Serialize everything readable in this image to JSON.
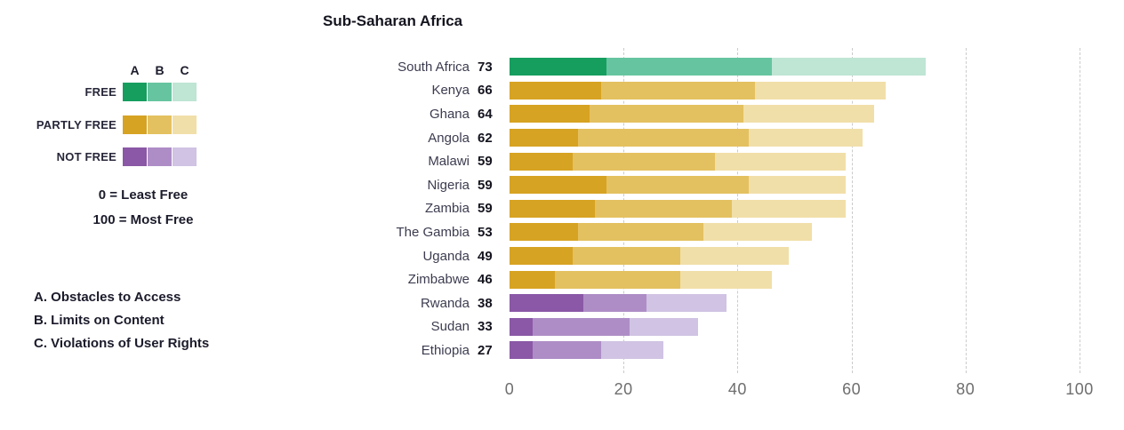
{
  "title": "Sub-Saharan Africa",
  "legend": {
    "columns": [
      "A",
      "B",
      "C"
    ],
    "categories": [
      {
        "label": "FREE",
        "key": "free"
      },
      {
        "label": "PARTLY FREE",
        "key": "partly_free"
      },
      {
        "label": "NOT FREE",
        "key": "not_free"
      }
    ],
    "scale_note_min": "0 = Least Free",
    "scale_note_max": "100 = Most Free",
    "definitions": [
      "A. Obstacles to Access",
      "B. Limits on Content",
      "C. Violations of User Rights"
    ]
  },
  "colors": {
    "free": [
      "#169e5f",
      "#66c5a0",
      "#bfe5d5"
    ],
    "partly_free": [
      "#d7a322",
      "#e4c160",
      "#f1dfa9"
    ],
    "not_free": [
      "#8a58a6",
      "#ae8dc6",
      "#d0c3e3"
    ],
    "gridline": "#cbcbcb",
    "axis_text": "#6e6e6e"
  },
  "chart_data": {
    "type": "bar",
    "orientation": "horizontal",
    "stacked": true,
    "title": "Sub-Saharan Africa",
    "xlim": [
      0,
      100
    ],
    "x_ticks": [
      0,
      20,
      40,
      60,
      80,
      100
    ],
    "grid": "dashed-vertical",
    "segment_labels": [
      "A. Obstacles to Access",
      "B. Limits on Content",
      "C. Violations of User Rights"
    ],
    "rows": [
      {
        "country": "South Africa",
        "total": 73,
        "status": "free",
        "segments": [
          17,
          29,
          27
        ]
      },
      {
        "country": "Kenya",
        "total": 66,
        "status": "partly_free",
        "segments": [
          16,
          27,
          23
        ]
      },
      {
        "country": "Ghana",
        "total": 64,
        "status": "partly_free",
        "segments": [
          14,
          27,
          23
        ]
      },
      {
        "country": "Angola",
        "total": 62,
        "status": "partly_free",
        "segments": [
          12,
          30,
          20
        ]
      },
      {
        "country": "Malawi",
        "total": 59,
        "status": "partly_free",
        "segments": [
          11,
          25,
          23
        ]
      },
      {
        "country": "Nigeria",
        "total": 59,
        "status": "partly_free",
        "segments": [
          17,
          25,
          17
        ]
      },
      {
        "country": "Zambia",
        "total": 59,
        "status": "partly_free",
        "segments": [
          15,
          24,
          20
        ]
      },
      {
        "country": "The Gambia",
        "total": 53,
        "status": "partly_free",
        "segments": [
          12,
          22,
          19
        ]
      },
      {
        "country": "Uganda",
        "total": 49,
        "status": "partly_free",
        "segments": [
          11,
          19,
          19
        ]
      },
      {
        "country": "Zimbabwe",
        "total": 46,
        "status": "partly_free",
        "segments": [
          8,
          22,
          16
        ]
      },
      {
        "country": "Rwanda",
        "total": 38,
        "status": "not_free",
        "segments": [
          13,
          11,
          14
        ]
      },
      {
        "country": "Sudan",
        "total": 33,
        "status": "not_free",
        "segments": [
          4,
          17,
          12
        ]
      },
      {
        "country": "Ethiopia",
        "total": 27,
        "status": "not_free",
        "segments": [
          4,
          12,
          11
        ]
      }
    ]
  }
}
